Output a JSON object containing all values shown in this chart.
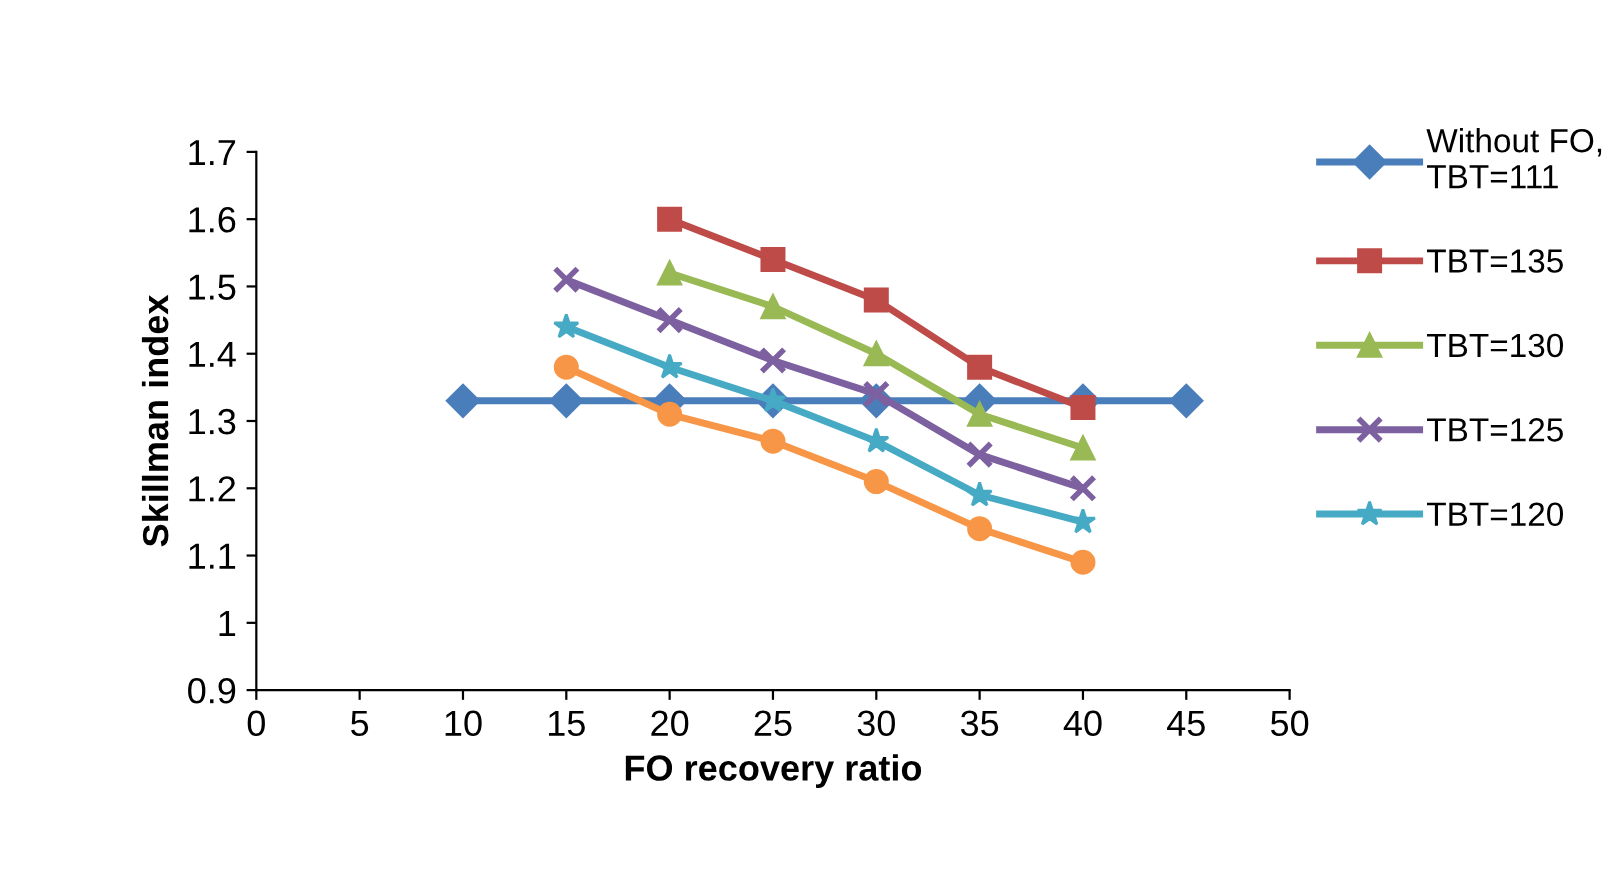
{
  "chart_data": {
    "type": "line",
    "xlabel": "FO recovery ratio",
    "ylabel": "Skillman index",
    "xlim": [
      0,
      50
    ],
    "xticks": [
      0,
      5,
      10,
      15,
      20,
      25,
      30,
      35,
      40,
      45,
      50
    ],
    "ylim": [
      0.9,
      1.7
    ],
    "yticks": [
      {
        "value": 0.9,
        "label": "0.9"
      },
      {
        "value": 1,
        "label": "1"
      },
      {
        "value": 1.1,
        "label": "1.1"
      },
      {
        "value": 1.2,
        "label": "1.2"
      },
      {
        "value": 1.3,
        "label": "1.3"
      },
      {
        "value": 1.4,
        "label": "1.4"
      },
      {
        "value": 1.5,
        "label": "1.5"
      },
      {
        "value": 1.6,
        "label": "1.6"
      },
      {
        "value": 1.7,
        "label": "1.7"
      }
    ],
    "grid": false,
    "legend": "right",
    "line_style": "solid",
    "series": [
      {
        "name": "Without FO,\nTBT=111",
        "color": "#4a7ebb",
        "marker": "diamond",
        "x": [
          10,
          15,
          20,
          25,
          30,
          35,
          40,
          45
        ],
        "values": [
          1.33,
          1.33,
          1.33,
          1.33,
          1.33,
          1.33,
          1.33,
          1.33
        ]
      },
      {
        "name": "TBT=135",
        "color": "#be4b48",
        "marker": "square",
        "x": [
          20,
          25,
          30,
          35,
          40
        ],
        "values": [
          1.6,
          1.54,
          1.48,
          1.38,
          1.32
        ]
      },
      {
        "name": "TBT=130",
        "color": "#98b954",
        "marker": "triangle",
        "x": [
          20,
          25,
          30,
          35,
          40
        ],
        "values": [
          1.52,
          1.47,
          1.4,
          1.31,
          1.26
        ]
      },
      {
        "name": "TBT=125",
        "color": "#7d60a0",
        "marker": "cross",
        "x": [
          15,
          20,
          25,
          30,
          35,
          40
        ],
        "values": [
          1.51,
          1.45,
          1.39,
          1.34,
          1.25,
          1.2
        ]
      },
      {
        "name": "TBT=120",
        "color": "#46aac5",
        "marker": "star",
        "x": [
          15,
          20,
          25,
          30,
          35,
          40
        ],
        "values": [
          1.44,
          1.38,
          1.33,
          1.27,
          1.19,
          1.15
        ]
      },
      {
        "color": "#f79646",
        "marker": "circle",
        "x": [
          15,
          20,
          25,
          30,
          35,
          40
        ],
        "values": [
          1.38,
          1.31,
          1.27,
          1.21,
          1.14,
          1.09
        ]
      }
    ]
  }
}
